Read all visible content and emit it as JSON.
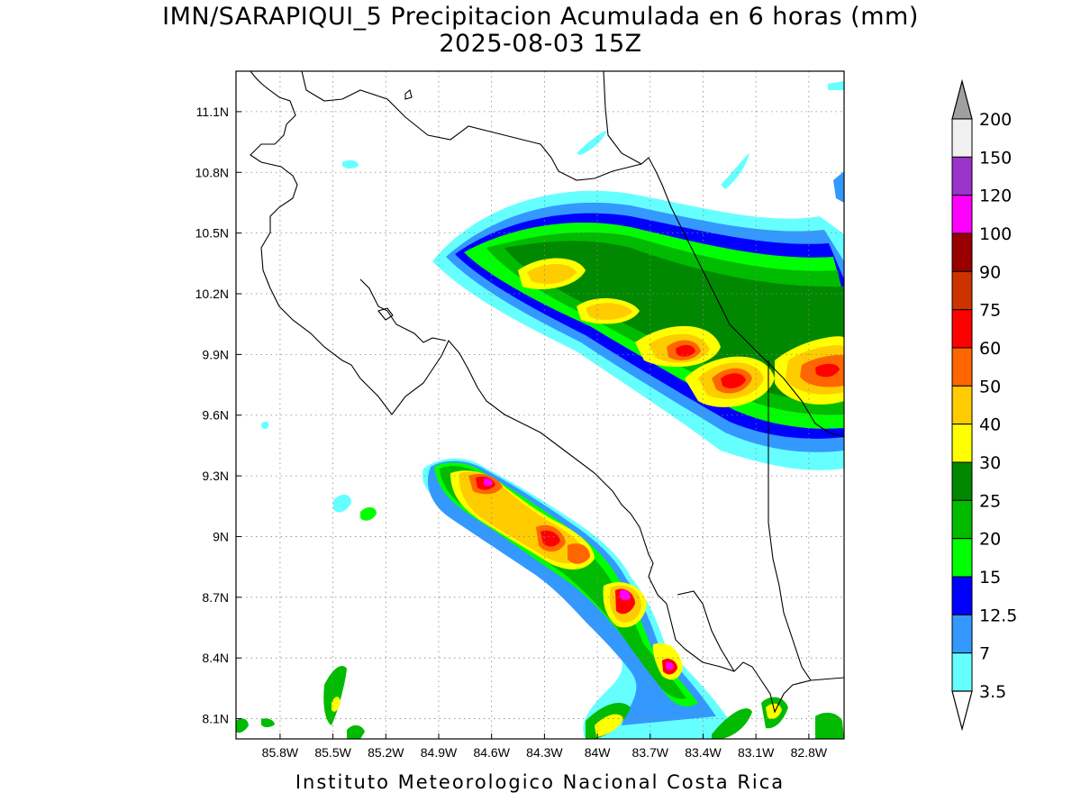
{
  "title": "IMN/SARAPIQUI_5 Precipitacion Acumulada en 6 horas (mm)",
  "subtitle": "2025-08-03 15Z",
  "footer": "Instituto Meteorologico Nacional Costa Rica",
  "map": {
    "lon_range": [
      -86.05,
      -82.6
    ],
    "lat_range": [
      8.0,
      11.3
    ],
    "lat_ticks": [
      {
        "value": 11.1,
        "label": "11.1N"
      },
      {
        "value": 10.8,
        "label": "10.8N"
      },
      {
        "value": 10.5,
        "label": "10.5N"
      },
      {
        "value": 10.2,
        "label": "10.2N"
      },
      {
        "value": 9.9,
        "label": "9.9N"
      },
      {
        "value": 9.6,
        "label": "9.6N"
      },
      {
        "value": 9.3,
        "label": "9.3N"
      },
      {
        "value": 9.0,
        "label": "9N"
      },
      {
        "value": 8.7,
        "label": "8.7N"
      },
      {
        "value": 8.4,
        "label": "8.4N"
      },
      {
        "value": 8.1,
        "label": "8.1N"
      }
    ],
    "lon_ticks": [
      {
        "value": -85.8,
        "label": "85.8W"
      },
      {
        "value": -85.5,
        "label": "85.5W"
      },
      {
        "value": -85.2,
        "label": "85.2W"
      },
      {
        "value": -84.9,
        "label": "84.9W"
      },
      {
        "value": -84.6,
        "label": "84.6W"
      },
      {
        "value": -84.3,
        "label": "84.3W"
      },
      {
        "value": -84.0,
        "label": "84W"
      },
      {
        "value": -83.7,
        "label": "83.7W"
      },
      {
        "value": -83.4,
        "label": "83.4W"
      },
      {
        "value": -83.1,
        "label": "83.1W"
      },
      {
        "value": -82.8,
        "label": "82.8W"
      }
    ],
    "grid": "dotted"
  },
  "colorbar": {
    "levels": [
      {
        "label": "200",
        "color": "#a0a0a0"
      },
      {
        "label": "150",
        "color": "#f0f0f0"
      },
      {
        "label": "120",
        "color": "#9933cc"
      },
      {
        "label": "100",
        "color": "#ff00ff"
      },
      {
        "label": "90",
        "color": "#990000"
      },
      {
        "label": "75",
        "color": "#cc3300"
      },
      {
        "label": "60",
        "color": "#ff0000"
      },
      {
        "label": "50",
        "color": "#ff6600"
      },
      {
        "label": "40",
        "color": "#ffcc00"
      },
      {
        "label": "30",
        "color": "#ffff00"
      },
      {
        "label": "25",
        "color": "#008800"
      },
      {
        "label": "20",
        "color": "#00bb00"
      },
      {
        "label": "15",
        "color": "#00ff00"
      },
      {
        "label": "12.5",
        "color": "#0000ff"
      },
      {
        "label": "7",
        "color": "#3399ff"
      },
      {
        "label": "3.5",
        "color": "#66ffff"
      }
    ],
    "bottom_arrow_color": "#ffffff",
    "top_arrow_color": "#a0a0a0"
  }
}
